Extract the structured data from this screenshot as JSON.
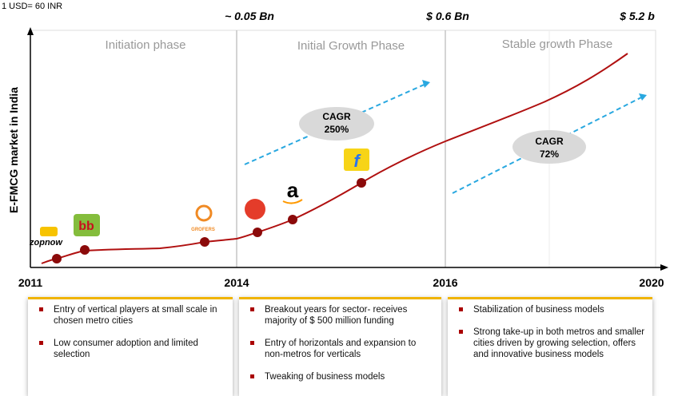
{
  "note_top": "1 USD= 60 INR",
  "y_axis_label": "E-FMCG market in India",
  "phases": [
    {
      "name": "Initiation phase",
      "value_label": "~ 0.05 Bn"
    },
    {
      "name": "Initial Growth Phase",
      "value_label": "$ 0.6 Bn"
    },
    {
      "name": "Stable growth Phase",
      "value_label": "$ 5.2 b"
    }
  ],
  "cagr": [
    {
      "label": "CAGR",
      "value": "250%"
    },
    {
      "label": "CAGR",
      "value": "72%"
    }
  ],
  "x_labels": [
    "2011",
    "2014",
    "2016",
    "2020"
  ],
  "logos": [
    "zopnow",
    "GROFERS"
  ],
  "boxes": [
    [
      "Entry of vertical players at small scale in chosen metro cities",
      "Low consumer adoption and limited selection"
    ],
    [
      "Breakout years for sector- receives majority of $ 500 million funding",
      "Entry of horizontals and expansion to non-metros for verticals",
      "Tweaking of business models"
    ],
    [
      "Stabilization of business models",
      "Strong take-up in both metros and smaller cities driven by growing selection, offers and innovative business models"
    ]
  ]
}
